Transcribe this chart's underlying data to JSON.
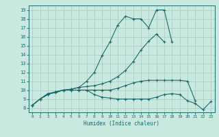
{
  "title": "",
  "xlabel": "Humidex (Indice chaleur)",
  "bg_color": "#c8e8e0",
  "grid_color": "#a8c8c0",
  "line_color": "#1a6b6b",
  "xlim": [
    -0.5,
    23.5
  ],
  "ylim": [
    7.5,
    19.5
  ],
  "yticks": [
    8,
    9,
    10,
    11,
    12,
    13,
    14,
    15,
    16,
    17,
    18,
    19
  ],
  "xticks": [
    0,
    1,
    2,
    3,
    4,
    5,
    6,
    7,
    8,
    9,
    10,
    11,
    12,
    13,
    14,
    15,
    16,
    17,
    18,
    19,
    20,
    21,
    22,
    23
  ],
  "series": [
    [
      8.3,
      9.0,
      9.6,
      9.7,
      10.0,
      10.1,
      10.3,
      11.0,
      12.0,
      13.9,
      15.4,
      17.3,
      18.3,
      18.0,
      18.0,
      17.0,
      19.0,
      19.0,
      15.4,
      null,
      null,
      null,
      null,
      null
    ],
    [
      8.3,
      9.0,
      9.6,
      9.8,
      10.0,
      10.1,
      10.3,
      10.4,
      10.5,
      10.7,
      11.0,
      11.5,
      12.2,
      13.2,
      14.5,
      15.5,
      16.3,
      15.4,
      null,
      null,
      null,
      null,
      null,
      null
    ],
    [
      8.3,
      9.0,
      9.5,
      9.8,
      10.0,
      10.0,
      10.0,
      10.0,
      9.5,
      9.2,
      9.1,
      9.0,
      9.0,
      9.0,
      9.0,
      9.0,
      9.2,
      9.5,
      9.6,
      9.5,
      8.8,
      8.5,
      7.8,
      8.7
    ],
    [
      8.3,
      9.0,
      9.5,
      9.8,
      10.0,
      10.0,
      10.0,
      10.0,
      10.0,
      10.0,
      10.0,
      10.2,
      10.5,
      10.8,
      11.0,
      11.1,
      11.1,
      11.1,
      11.1,
      11.1,
      11.0,
      8.8,
      null,
      null
    ]
  ]
}
